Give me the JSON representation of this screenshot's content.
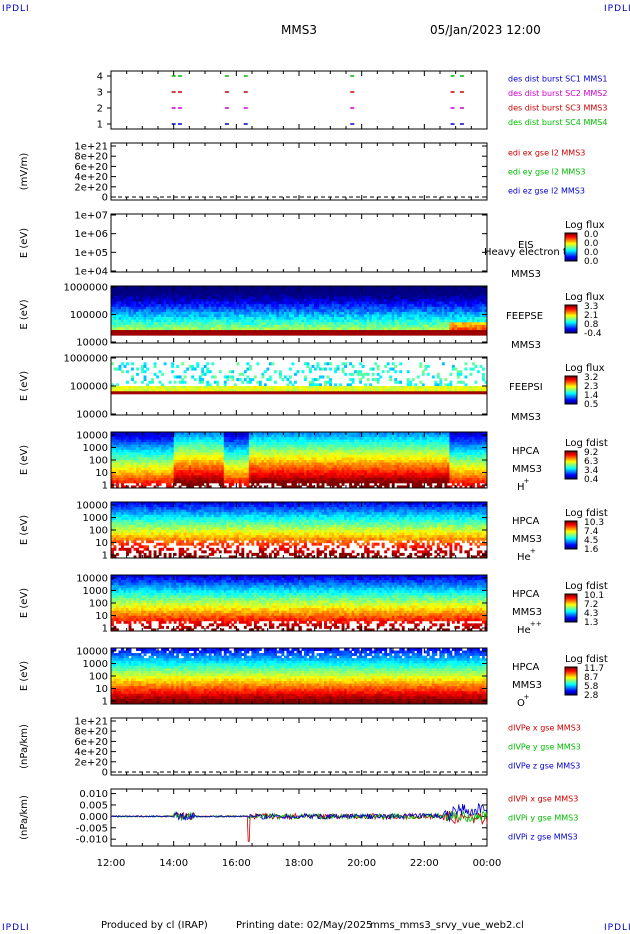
{
  "corner_label": "IPDLI",
  "header": {
    "mission": "MMS3",
    "datetime": "05/Jan/2023 12:00"
  },
  "footer": {
    "produced_by": "Produced by cl (IRAP)",
    "printing_date": "Printing date: 02/May/2025",
    "script_name": "mms_mms3_srvy_vue_web2.cl"
  },
  "time_axis": {
    "ticks": [
      "12:00",
      "14:00",
      "16:00",
      "18:00",
      "20:00",
      "22:00",
      "00:00"
    ]
  },
  "chart_data": [
    {
      "type": "scatter",
      "id": "burst",
      "yticks": [
        "4",
        "3",
        "2",
        "1"
      ],
      "legend": [
        {
          "text": "des dist burst SC1 MMS1",
          "color": "#0000cc"
        },
        {
          "text": "des dist burst SC2 MMS2",
          "color": "#cc00cc"
        },
        {
          "text": "des dist burst SC3 MMS3",
          "color": "#cc0000"
        },
        {
          "text": "des dist burst SC4 MMS4",
          "color": "#00bb00"
        }
      ],
      "series": [
        {
          "level": 4,
          "color": "#00bb00",
          "x_hours": [
            14.0,
            14.2,
            15.7,
            16.3,
            19.7,
            22.9,
            23.2
          ]
        },
        {
          "level": 3,
          "color": "#cc0000",
          "x_hours": [
            14.0,
            14.2,
            15.7,
            16.3,
            19.7,
            22.9,
            23.2
          ]
        },
        {
          "level": 2,
          "color": "#cc00cc",
          "x_hours": [
            14.0,
            14.2,
            15.7,
            16.3,
            19.7,
            22.9,
            23.2
          ]
        },
        {
          "level": 1,
          "color": "#0000cc",
          "x_hours": [
            14.0,
            14.2,
            15.7,
            16.3,
            19.7,
            22.9,
            23.2
          ]
        }
      ]
    },
    {
      "type": "line",
      "id": "edi",
      "ylabel": "(mV/m)",
      "yticks": [
        "1e+21",
        "8e+20",
        "6e+20",
        "4e+20",
        "2e+20",
        "0"
      ],
      "legend": [
        {
          "text": "edi ex gse l2 MMS3",
          "color": "#cc0000"
        },
        {
          "text": "edi ey gse l2 MMS3",
          "color": "#00bb00"
        },
        {
          "text": "edi ez gse l2 MMS3",
          "color": "#0000cc"
        }
      ]
    },
    {
      "type": "heatmap",
      "id": "eis",
      "ylabel": "E (eV)",
      "yticks": [
        "1e+07",
        "1e+06",
        "1e+05",
        "1e+04"
      ],
      "labels": {
        "instrument": "EIS",
        "overlay": "Heavy electron to",
        "spacecraft": "MMS3"
      },
      "colorbar": {
        "title": "Log flux",
        "ticks": [
          "0.0",
          "0.0",
          "0.0",
          "0.0"
        ]
      }
    },
    {
      "type": "heatmap",
      "id": "feepse",
      "ylabel": "E (eV)",
      "yticks": [
        "1000000",
        "100000",
        "10000"
      ],
      "labels": {
        "instrument": "FEEPSE",
        "spacecraft": "MMS3"
      },
      "colorbar": {
        "title": "Log flux",
        "ticks": [
          "3.3",
          "2.1",
          "0.8",
          "-0.4"
        ]
      }
    },
    {
      "type": "heatmap",
      "id": "feepsi",
      "ylabel": "E (eV)",
      "yticks": [
        "1000000",
        "100000",
        "10000"
      ],
      "labels": {
        "instrument": "FEEPSI",
        "spacecraft": "MMS3"
      },
      "colorbar": {
        "title": "Log flux",
        "ticks": [
          "3.2",
          "2.3",
          "1.4",
          "0.5"
        ]
      }
    },
    {
      "type": "heatmap",
      "id": "hpca_h",
      "ylabel": "E (eV)",
      "yticks": [
        "10000",
        "1000",
        "100",
        "10",
        "1"
      ],
      "labels": {
        "instrument": "HPCA",
        "spacecraft": "MMS3",
        "species": "H",
        "charge": "+"
      },
      "colorbar": {
        "title": "Log fdist",
        "ticks": [
          "9.2",
          "6.3",
          "3.4",
          "0.4"
        ]
      }
    },
    {
      "type": "heatmap",
      "id": "hpca_he1",
      "ylabel": "E (eV)",
      "yticks": [
        "10000",
        "1000",
        "100",
        "10",
        "1"
      ],
      "labels": {
        "instrument": "HPCA",
        "spacecraft": "MMS3",
        "species": "He",
        "charge": "+"
      },
      "colorbar": {
        "title": "Log fdist",
        "ticks": [
          "10.3",
          "7.4",
          "4.5",
          "1.6"
        ]
      }
    },
    {
      "type": "heatmap",
      "id": "hpca_he2",
      "ylabel": "E (eV)",
      "yticks": [
        "10000",
        "1000",
        "100",
        "10",
        "1"
      ],
      "labels": {
        "instrument": "HPCA",
        "spacecraft": "MMS3",
        "species": "He",
        "charge": "++"
      },
      "colorbar": {
        "title": "Log fdist",
        "ticks": [
          "10.1",
          "7.2",
          "4.3",
          "1.3"
        ]
      }
    },
    {
      "type": "heatmap",
      "id": "hpca_o",
      "ylabel": "E (eV)",
      "yticks": [
        "10000",
        "1000",
        "100",
        "10",
        "1"
      ],
      "labels": {
        "instrument": "HPCA",
        "spacecraft": "MMS3",
        "species": "O",
        "charge": "+"
      },
      "colorbar": {
        "title": "Log fdist",
        "ticks": [
          "11.7",
          "8.7",
          "5.8",
          "2.8"
        ]
      }
    },
    {
      "type": "line",
      "id": "dpe",
      "ylabel": "(nPa/km)",
      "yticks": [
        "1e+21",
        "8e+20",
        "6e+20",
        "4e+20",
        "2e+20",
        "0"
      ],
      "legend": [
        {
          "text": "dIVPe x gse MMS3",
          "color": "#cc0000"
        },
        {
          "text": "dIVPe y gse MMS3",
          "color": "#00bb00"
        },
        {
          "text": "dIVPe z gse MMS3",
          "color": "#0000cc"
        }
      ]
    },
    {
      "type": "line",
      "id": "dpi",
      "ylabel": "(nPa/km)",
      "yticks": [
        "0.010",
        "0.005",
        "0.000",
        "-0.005",
        "-0.010"
      ],
      "ylim": [
        -0.013,
        0.012
      ],
      "legend": [
        {
          "text": "dIVPi x gse MMS3",
          "color": "#cc0000"
        },
        {
          "text": "dIVPi y gse MMS3",
          "color": "#00bb00"
        },
        {
          "text": "dIVPi z gse MMS3",
          "color": "#0000cc"
        }
      ]
    }
  ]
}
